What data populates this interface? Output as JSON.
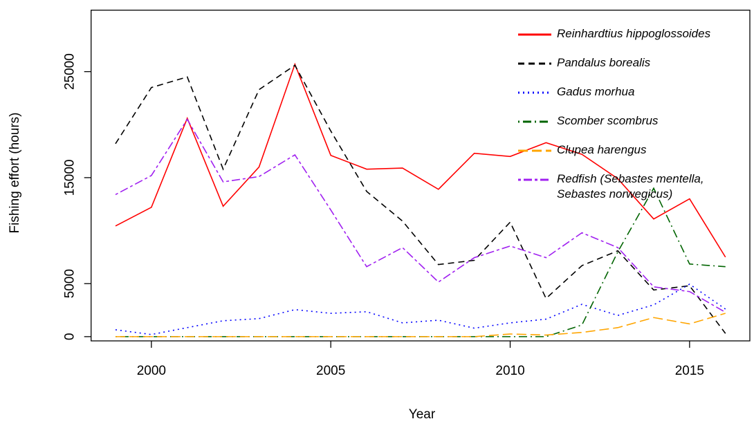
{
  "chart_data": {
    "type": "line",
    "x_label": "Year",
    "y_label": "Fishing effort (hours)",
    "x": [
      1999,
      2000,
      2001,
      2002,
      2003,
      2004,
      2005,
      2006,
      2007,
      2008,
      2009,
      2010,
      2011,
      2012,
      2013,
      2014,
      2015,
      2016
    ],
    "xlim": [
      1998.32,
      2016.68
    ],
    "xticks": [
      2000,
      2005,
      2010,
      2015
    ],
    "ylim": [
      -400,
      30800
    ],
    "yticks": [
      0,
      5000,
      15000,
      25000
    ],
    "legend": "top-right",
    "series": [
      {
        "name": "Reinhardtius hippoglossoides",
        "color": "#ff0000",
        "linestyle": "solid",
        "values": [
          10440,
          12200,
          20600,
          12300,
          16000,
          25700,
          17100,
          15800,
          15900,
          13900,
          17300,
          17000,
          18300,
          17200,
          14900,
          11100,
          13000,
          7500
        ]
      },
      {
        "name": "Pandalus borealis",
        "color": "#000000",
        "linestyle": "dashed",
        "values": [
          18200,
          23500,
          24500,
          15800,
          23300,
          25600,
          19400,
          13700,
          10900,
          6800,
          7200,
          10800,
          3600,
          6700,
          8100,
          4400,
          4800,
          300
        ]
      },
      {
        "name": "Gadus morhua",
        "color": "#0000ff",
        "linestyle": "dotted",
        "values": [
          650,
          200,
          850,
          1500,
          1700,
          2550,
          2200,
          2350,
          1300,
          1550,
          800,
          1300,
          1650,
          3050,
          2000,
          3000,
          4950,
          2600
        ]
      },
      {
        "name": "Scomber scombrus",
        "color": "#006400",
        "linestyle": "dotdash",
        "values": [
          0,
          0,
          0,
          0,
          0,
          0,
          0,
          0,
          0,
          0,
          0,
          0,
          0,
          1100,
          8000,
          14000,
          6850,
          6600
        ]
      },
      {
        "name": "Clupea harengus",
        "color": "#ffa500",
        "linestyle": "longdash",
        "values": [
          0,
          0,
          0,
          0,
          0,
          0,
          0,
          0,
          0,
          0,
          0,
          250,
          150,
          400,
          850,
          1800,
          1200,
          2200
        ]
      },
      {
        "name": "Redfish (Sebastes mentella, Sebastes norwegicus)",
        "color": "#a020f0",
        "linestyle": "twodash",
        "values": [
          13400,
          15200,
          20500,
          14600,
          15100,
          17150,
          11950,
          6600,
          8400,
          5150,
          7450,
          8550,
          7450,
          9800,
          8400,
          4700,
          4250,
          2300
        ]
      }
    ]
  }
}
